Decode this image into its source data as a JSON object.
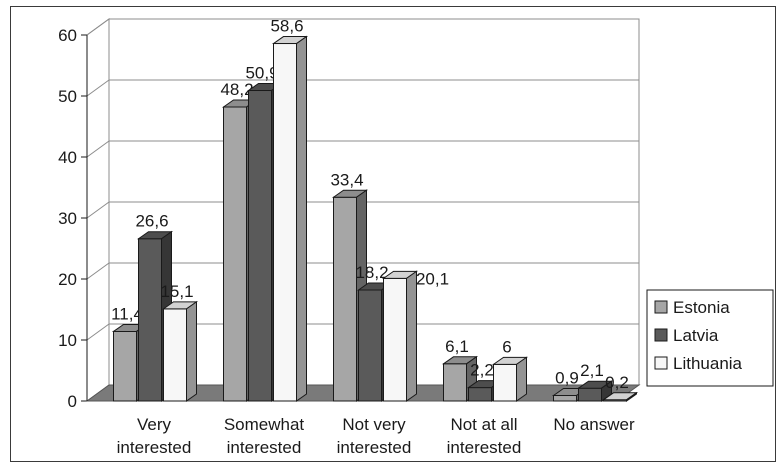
{
  "chart_data": {
    "type": "bar",
    "categories": [
      [
        "Very",
        "interested"
      ],
      [
        "Somewhat",
        "interested"
      ],
      [
        "Not very",
        "interested"
      ],
      [
        "Not at all",
        "interested"
      ],
      [
        "No answer"
      ]
    ],
    "series": [
      {
        "name": "Estonia",
        "values": [
          11.4,
          48.2,
          33.4,
          6.1,
          0.9
        ],
        "labels": [
          "11,4",
          "48,2",
          "33,4",
          "6,1",
          "0,9"
        ],
        "color": "#a6a6a6"
      },
      {
        "name": "Latvia",
        "values": [
          26.6,
          50.9,
          18.2,
          2.2,
          2.1
        ],
        "labels": [
          "26,6",
          "50,9",
          "18,2",
          "2,2",
          "2,1"
        ],
        "color": "#5a5a5a"
      },
      {
        "name": "Lithuania",
        "values": [
          15.1,
          58.6,
          20.1,
          6,
          0.2
        ],
        "labels": [
          "15,1",
          "58,6",
          "20,1",
          "6",
          "0,2"
        ],
        "color": "#f7f7f7"
      }
    ],
    "yticks": [
      "0",
      "10",
      "20",
      "30",
      "40",
      "50",
      "60"
    ],
    "ylim": [
      0,
      60
    ],
    "grid": true,
    "legend_position": "right",
    "title": "",
    "xlabel": "",
    "ylabel": ""
  }
}
